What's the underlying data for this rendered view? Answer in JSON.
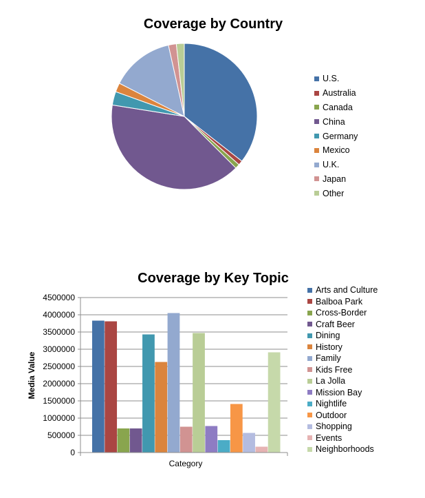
{
  "colors": {
    "palette": [
      "#4572A7",
      "#AA4643",
      "#89A54E",
      "#71588F",
      "#4198AF",
      "#DB843D",
      "#93A9CF",
      "#D19392",
      "#B9CD96",
      "#8E7CC3",
      "#4BACC6",
      "#F79646",
      "#B4BCE0",
      "#E6B3B3",
      "#C6D9AA"
    ]
  },
  "chart_data": [
    {
      "type": "pie",
      "title": "Coverage by Country",
      "legend_position": "right",
      "slices": [
        {
          "label": "U.S.",
          "value": 35.5
        },
        {
          "label": "Australia",
          "value": 1.0
        },
        {
          "label": "Canada",
          "value": 1.0
        },
        {
          "label": "China",
          "value": 40.0
        },
        {
          "label": "Germany",
          "value": 3.0
        },
        {
          "label": "Mexico",
          "value": 2.0
        },
        {
          "label": "U.K.",
          "value": 14.0
        },
        {
          "label": "Japan",
          "value": 1.75
        },
        {
          "label": "Other",
          "value": 1.75
        }
      ]
    },
    {
      "type": "bar",
      "title": "Coverage by Key Topic",
      "xlabel": "Category",
      "ylabel": "Media Value",
      "ylim": [
        0,
        4500000
      ],
      "yticks": [
        "0",
        "500000",
        "1000000",
        "1500000",
        "2000000",
        "2500000",
        "3000000",
        "3500000",
        "4000000",
        "4500000"
      ],
      "grid": true,
      "legend_position": "right",
      "series": [
        {
          "name": "Arts and Culture",
          "value": 3830000
        },
        {
          "name": "Balboa Park",
          "value": 3810000
        },
        {
          "name": "Cross-Border",
          "value": 700000
        },
        {
          "name": "Craft Beer",
          "value": 700000
        },
        {
          "name": "Dining",
          "value": 3430000
        },
        {
          "name": "History",
          "value": 2630000
        },
        {
          "name": "Family",
          "value": 4050000
        },
        {
          "name": "Kids Free",
          "value": 750000
        },
        {
          "name": "La Jolla",
          "value": 3470000
        },
        {
          "name": "Mission Bay",
          "value": 770000
        },
        {
          "name": "Nightlife",
          "value": 360000
        },
        {
          "name": "Outdoor",
          "value": 1410000
        },
        {
          "name": "Shopping",
          "value": 570000
        },
        {
          "name": "Events",
          "value": 170000
        },
        {
          "name": "Neighborhoods",
          "value": 2910000
        }
      ]
    }
  ]
}
